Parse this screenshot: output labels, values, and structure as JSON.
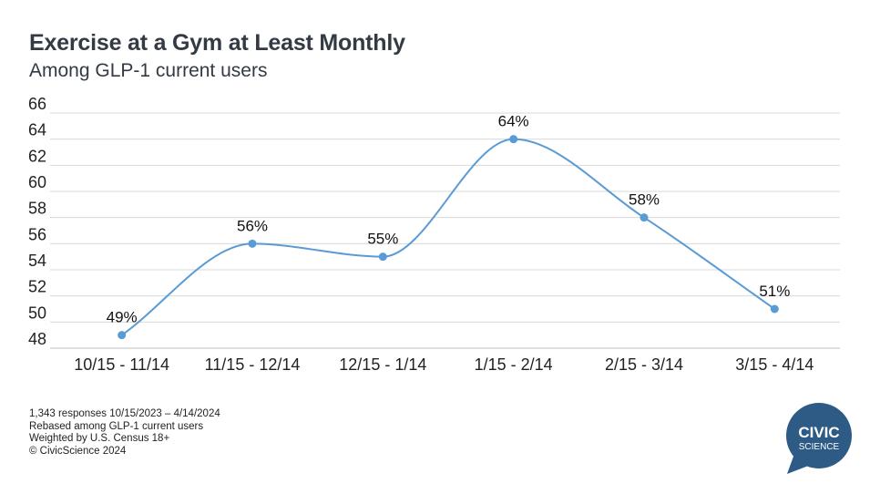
{
  "header": {
    "title": "Exercise at a Gym at Least Monthly",
    "subtitle": "Among GLP-1 current users"
  },
  "chart_data": {
    "type": "line",
    "title": "Exercise at a Gym at Least Monthly",
    "subtitle": "Among GLP-1 current users",
    "categories": [
      "10/15 - 11/14",
      "11/15 - 12/14",
      "12/15 - 1/14",
      "1/15 - 2/14",
      "2/15 - 3/14",
      "3/15 - 4/14"
    ],
    "series": [
      {
        "values": [
          49,
          56,
          55,
          64,
          58,
          51
        ],
        "labels": [
          "49%",
          "56%",
          "55%",
          "64%",
          "58%",
          "51%"
        ],
        "color": "#5b9bd5",
        "smooth": true
      }
    ],
    "ylim": [
      48,
      66
    ],
    "yticks": [
      48,
      50,
      52,
      54,
      56,
      58,
      60,
      62,
      64,
      66
    ],
    "grid": true,
    "xlabel": "",
    "ylabel": ""
  },
  "footnotes": [
    "1,343 responses 10/15/2023 – 4/14/2024",
    "Rebased among GLP-1 current users",
    "Weighted by U.S. Census 18+",
    "© CivicScience 2024"
  ],
  "logo": {
    "line1": "CIVIC",
    "line2": "SCIENCE",
    "color": "#2e5a86"
  },
  "colors": {
    "line": "#5b9bd5",
    "grid": "#d9d9d9",
    "title": "#333a44"
  }
}
